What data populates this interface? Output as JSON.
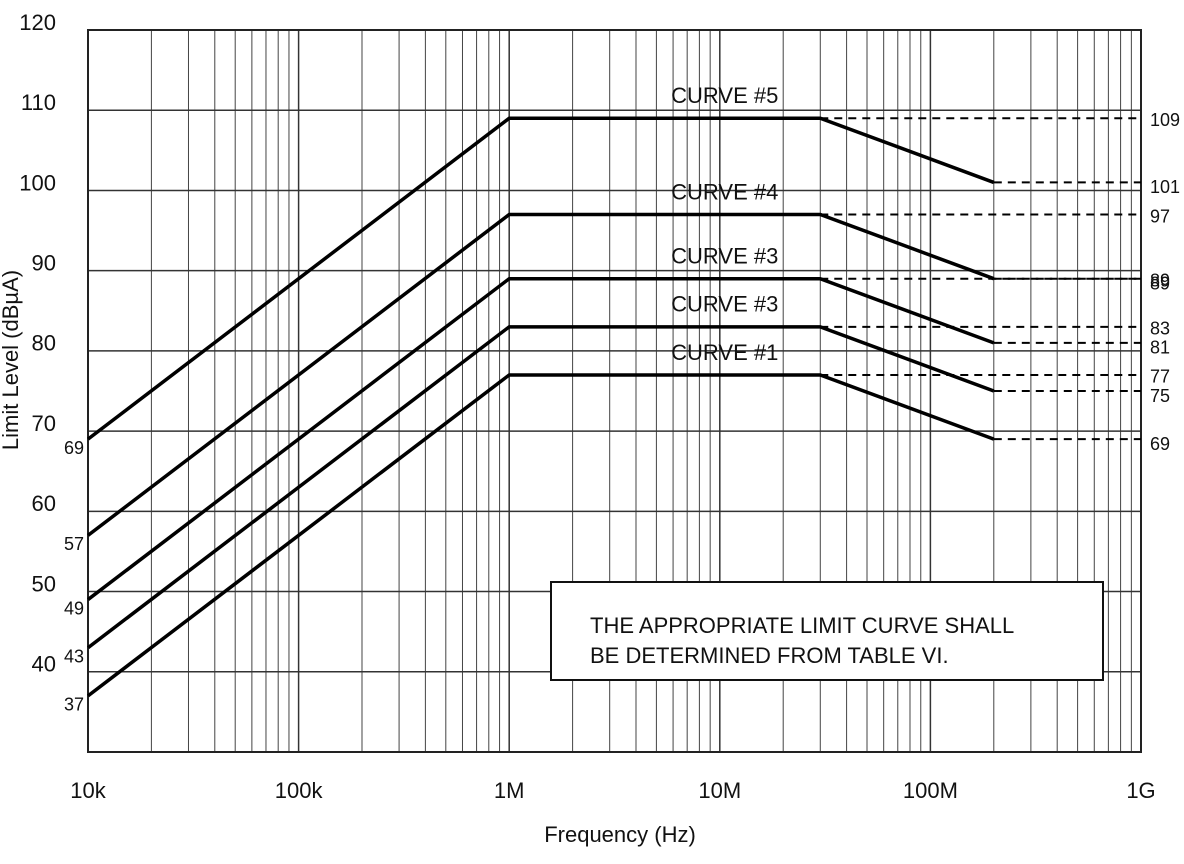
{
  "chart_data": {
    "type": "line",
    "xlabel": "Frequency (Hz)",
    "ylabel": "Limit Level (dBµA)",
    "xscale": "log",
    "grid": true,
    "color": "#000000",
    "extend_color": "#000000",
    "x": [
      10000,
      1000000,
      30000000,
      200000000
    ],
    "series": [
      {
        "name": "CURVE #5",
        "values": [
          69,
          109,
          109,
          101
        ]
      },
      {
        "name": "CURVE #4",
        "values": [
          57,
          97,
          97,
          89
        ]
      },
      {
        "name": "CURVE #3",
        "values": [
          49,
          89,
          89,
          81
        ]
      },
      {
        "name": "CURVE #3",
        "values": [
          43,
          83,
          83,
          75
        ]
      },
      {
        "name": "CURVE #1",
        "values": [
          37,
          77,
          77,
          69
        ]
      }
    ],
    "xlim": [
      10000,
      1000000000
    ],
    "xticks": [
      {
        "value": 10000,
        "label": "10k"
      },
      {
        "value": 100000,
        "label": "100k"
      },
      {
        "value": 1000000,
        "label": "1M"
      },
      {
        "value": 10000000,
        "label": "10M"
      },
      {
        "value": 100000000,
        "label": "100M"
      },
      {
        "value": 1000000000,
        "label": "1G"
      }
    ],
    "ylim": [
      30,
      120
    ],
    "yticks": [
      40,
      50,
      60,
      70,
      80,
      90,
      100,
      110,
      120
    ],
    "note": [
      "THE APPROPRIATE LIMIT CURVE SHALL",
      "BE DETERMINED FROM TABLE VI."
    ]
  }
}
